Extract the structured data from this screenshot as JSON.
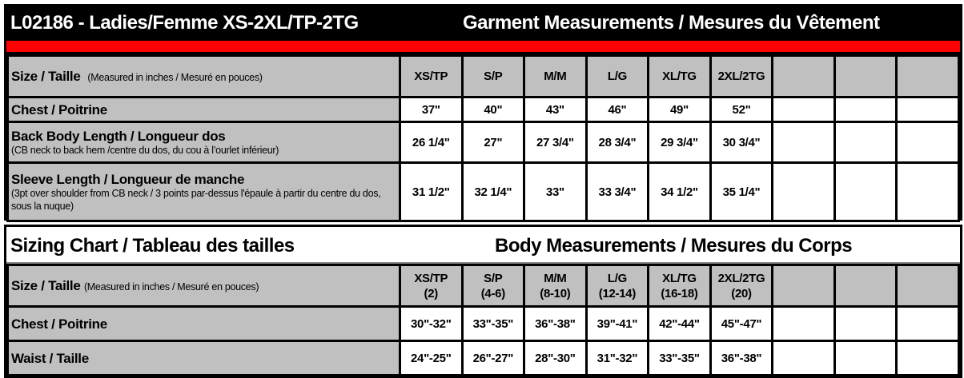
{
  "garment": {
    "title": "L02186 - Ladies/Femme XS-2XL/TP-2TG",
    "subtitle": "Garment Measurements / Mesures du Vêtement",
    "size_label": "Size / Taille",
    "size_note": "(Measured in inches / Mesuré en pouces)",
    "sizes": [
      "XS/TP",
      "S/P",
      "M/M",
      "L/G",
      "XL/TG",
      "2XL/2TG",
      "",
      "",
      ""
    ],
    "rows": [
      {
        "label": "Chest / Poitrine",
        "note": "",
        "values": [
          "37\"",
          "40\"",
          "43\"",
          "46\"",
          "49\"",
          "52\"",
          "",
          "",
          ""
        ]
      },
      {
        "label": "Back Body Length / Longueur dos",
        "note": "(CB neck to back hem /centre du dos, du cou à l’ourlet inférieur)",
        "values": [
          "26 1/4\"",
          "27\"",
          "27 3/4\"",
          "28 3/4\"",
          "29 3/4\"",
          "30 3/4\"",
          "",
          "",
          ""
        ]
      },
      {
        "label": "Sleeve Length / Longueur de manche",
        "note": "(3pt over shoulder from CB neck / 3 points par-dessus l'épaule à partir du centre du dos, sous la nuque)",
        "values": [
          "31 1/2\"",
          "32 1/4\"",
          "33\"",
          "33 3/4\"",
          "34 1/2\"",
          "35 1/4\"",
          "",
          "",
          ""
        ]
      }
    ]
  },
  "body": {
    "title": "Sizing Chart / Tableau des tailles",
    "subtitle": "Body Measurements / Mesures du Corps",
    "size_label": "Size / Taille",
    "size_note": "(Measured in inches / Mesuré en pouces)",
    "sizes": [
      [
        "XS/TP",
        "(2)"
      ],
      [
        "S/P",
        "(4-6)"
      ],
      [
        "M/M",
        "(8-10)"
      ],
      [
        "L/G",
        "(12-14)"
      ],
      [
        "XL/TG",
        "(16-18)"
      ],
      [
        "2XL/2TG",
        "(20)"
      ],
      [
        "",
        ""
      ],
      [
        "",
        ""
      ],
      [
        "",
        ""
      ]
    ],
    "rows": [
      {
        "label": "Chest / Poitrine",
        "values": [
          "30\"-32\"",
          "33\"-35\"",
          "36\"-38\"",
          "39\"-41\"",
          "42\"-44\"",
          "45\"-47\"",
          "",
          "",
          ""
        ]
      },
      {
        "label": "Waist / Taille",
        "values": [
          "24\"-25\"",
          "26\"-27\"",
          "28\"-30\"",
          "31\"-32\"",
          "33\"-35\"",
          "36\"-38\"",
          "",
          "",
          ""
        ]
      }
    ]
  },
  "colors": {
    "header_bg": "#000000",
    "accent_bar": "#ff0000",
    "label_bg": "#c0c0c0"
  }
}
